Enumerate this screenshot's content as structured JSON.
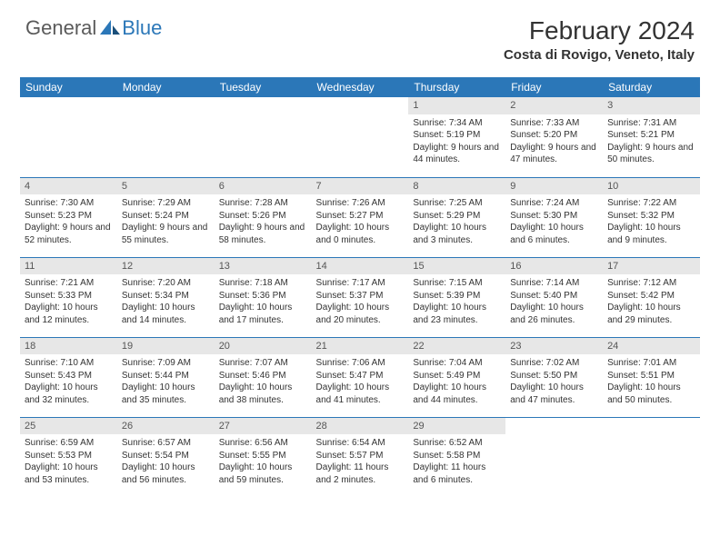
{
  "logo": {
    "part1": "General",
    "part2": "Blue"
  },
  "title": "February 2024",
  "subtitle": "Costa di Rovigo, Veneto, Italy",
  "colors": {
    "brand_blue": "#2b77b8",
    "header_row_bg": "#e7e7e7",
    "text": "#333333",
    "logo_gray": "#5a5a5a"
  },
  "weekdays": [
    "Sunday",
    "Monday",
    "Tuesday",
    "Wednesday",
    "Thursday",
    "Friday",
    "Saturday"
  ],
  "first_weekday_index": 4,
  "days": [
    {
      "n": 1,
      "sunrise": "7:34 AM",
      "sunset": "5:19 PM",
      "daylight": "9 hours and 44 minutes."
    },
    {
      "n": 2,
      "sunrise": "7:33 AM",
      "sunset": "5:20 PM",
      "daylight": "9 hours and 47 minutes."
    },
    {
      "n": 3,
      "sunrise": "7:31 AM",
      "sunset": "5:21 PM",
      "daylight": "9 hours and 50 minutes."
    },
    {
      "n": 4,
      "sunrise": "7:30 AM",
      "sunset": "5:23 PM",
      "daylight": "9 hours and 52 minutes."
    },
    {
      "n": 5,
      "sunrise": "7:29 AM",
      "sunset": "5:24 PM",
      "daylight": "9 hours and 55 minutes."
    },
    {
      "n": 6,
      "sunrise": "7:28 AM",
      "sunset": "5:26 PM",
      "daylight": "9 hours and 58 minutes."
    },
    {
      "n": 7,
      "sunrise": "7:26 AM",
      "sunset": "5:27 PM",
      "daylight": "10 hours and 0 minutes."
    },
    {
      "n": 8,
      "sunrise": "7:25 AM",
      "sunset": "5:29 PM",
      "daylight": "10 hours and 3 minutes."
    },
    {
      "n": 9,
      "sunrise": "7:24 AM",
      "sunset": "5:30 PM",
      "daylight": "10 hours and 6 minutes."
    },
    {
      "n": 10,
      "sunrise": "7:22 AM",
      "sunset": "5:32 PM",
      "daylight": "10 hours and 9 minutes."
    },
    {
      "n": 11,
      "sunrise": "7:21 AM",
      "sunset": "5:33 PM",
      "daylight": "10 hours and 12 minutes."
    },
    {
      "n": 12,
      "sunrise": "7:20 AM",
      "sunset": "5:34 PM",
      "daylight": "10 hours and 14 minutes."
    },
    {
      "n": 13,
      "sunrise": "7:18 AM",
      "sunset": "5:36 PM",
      "daylight": "10 hours and 17 minutes."
    },
    {
      "n": 14,
      "sunrise": "7:17 AM",
      "sunset": "5:37 PM",
      "daylight": "10 hours and 20 minutes."
    },
    {
      "n": 15,
      "sunrise": "7:15 AM",
      "sunset": "5:39 PM",
      "daylight": "10 hours and 23 minutes."
    },
    {
      "n": 16,
      "sunrise": "7:14 AM",
      "sunset": "5:40 PM",
      "daylight": "10 hours and 26 minutes."
    },
    {
      "n": 17,
      "sunrise": "7:12 AM",
      "sunset": "5:42 PM",
      "daylight": "10 hours and 29 minutes."
    },
    {
      "n": 18,
      "sunrise": "7:10 AM",
      "sunset": "5:43 PM",
      "daylight": "10 hours and 32 minutes."
    },
    {
      "n": 19,
      "sunrise": "7:09 AM",
      "sunset": "5:44 PM",
      "daylight": "10 hours and 35 minutes."
    },
    {
      "n": 20,
      "sunrise": "7:07 AM",
      "sunset": "5:46 PM",
      "daylight": "10 hours and 38 minutes."
    },
    {
      "n": 21,
      "sunrise": "7:06 AM",
      "sunset": "5:47 PM",
      "daylight": "10 hours and 41 minutes."
    },
    {
      "n": 22,
      "sunrise": "7:04 AM",
      "sunset": "5:49 PM",
      "daylight": "10 hours and 44 minutes."
    },
    {
      "n": 23,
      "sunrise": "7:02 AM",
      "sunset": "5:50 PM",
      "daylight": "10 hours and 47 minutes."
    },
    {
      "n": 24,
      "sunrise": "7:01 AM",
      "sunset": "5:51 PM",
      "daylight": "10 hours and 50 minutes."
    },
    {
      "n": 25,
      "sunrise": "6:59 AM",
      "sunset": "5:53 PM",
      "daylight": "10 hours and 53 minutes."
    },
    {
      "n": 26,
      "sunrise": "6:57 AM",
      "sunset": "5:54 PM",
      "daylight": "10 hours and 56 minutes."
    },
    {
      "n": 27,
      "sunrise": "6:56 AM",
      "sunset": "5:55 PM",
      "daylight": "10 hours and 59 minutes."
    },
    {
      "n": 28,
      "sunrise": "6:54 AM",
      "sunset": "5:57 PM",
      "daylight": "11 hours and 2 minutes."
    },
    {
      "n": 29,
      "sunrise": "6:52 AM",
      "sunset": "5:58 PM",
      "daylight": "11 hours and 6 minutes."
    }
  ],
  "labels": {
    "sunrise": "Sunrise:",
    "sunset": "Sunset:",
    "daylight": "Daylight:"
  }
}
